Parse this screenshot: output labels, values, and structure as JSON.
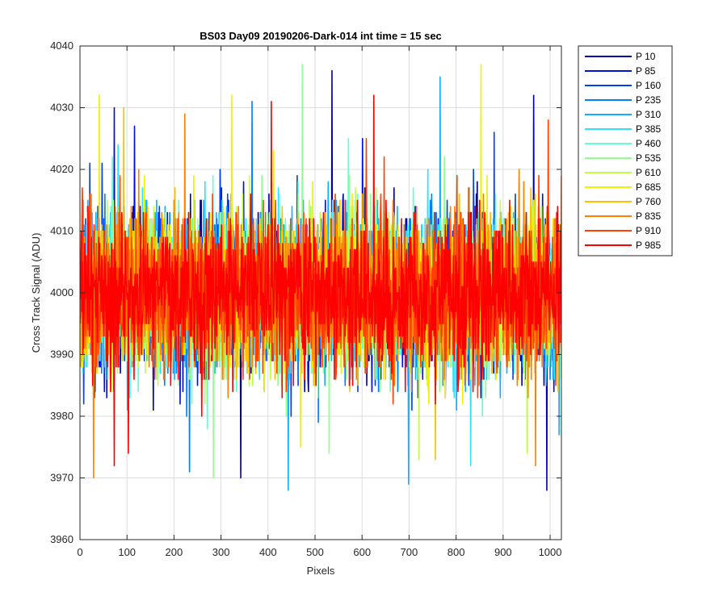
{
  "chart_data": {
    "type": "line",
    "title": "BS03 Day09 20190206-Dark-014 int time = 15 sec",
    "xlabel": "Pixels",
    "ylabel": "Cross Track Signal (ADU)",
    "xlim": [
      0,
      1024
    ],
    "ylim": [
      3960,
      4040
    ],
    "xticks": [
      0,
      100,
      200,
      300,
      400,
      500,
      600,
      700,
      800,
      900,
      1000
    ],
    "yticks": [
      3960,
      3970,
      3980,
      3990,
      4000,
      4010,
      4020,
      4030,
      4040
    ],
    "grid": true,
    "legend_position": "outside-right",
    "series": [
      {
        "name": "P 10",
        "color": "#0000aa",
        "mean": 4000,
        "spread": 6,
        "extremes": [
          [
            535,
            4036
          ],
          [
            964,
            4032
          ],
          [
            341,
            3970
          ],
          [
            992,
            3968
          ]
        ]
      },
      {
        "name": "P 85",
        "color": "#0010d8",
        "mean": 4000,
        "spread": 6,
        "extremes": [
          [
            72,
            4030
          ],
          [
            115,
            4027
          ],
          [
            600,
            4025
          ]
        ]
      },
      {
        "name": "P 160",
        "color": "#0040f0",
        "mean": 4000,
        "spread": 6,
        "extremes": [
          [
            20,
            4021
          ],
          [
            880,
            4026
          ]
        ]
      },
      {
        "name": "P 235",
        "color": "#0080f8",
        "mean": 4000,
        "spread": 6,
        "extremes": [
          [
            365,
            4031
          ],
          [
            232,
            3971
          ]
        ]
      },
      {
        "name": "P 310",
        "color": "#10b0ff",
        "mean": 4000,
        "spread": 6,
        "extremes": [
          [
            765,
            4035
          ],
          [
            442,
            3968
          ],
          [
            698,
            3969
          ]
        ]
      },
      {
        "name": "P 385",
        "color": "#30e0ff",
        "mean": 4000,
        "spread": 6,
        "extremes": [
          [
            80,
            4024
          ],
          [
            830,
            3972
          ]
        ]
      },
      {
        "name": "P 460",
        "color": "#60ffd0",
        "mean": 4000,
        "spread": 6,
        "extremes": [
          [
            570,
            4025
          ]
        ]
      },
      {
        "name": "P 535",
        "color": "#90ff90",
        "mean": 4000,
        "spread": 6,
        "extremes": [
          [
            472,
            4037
          ],
          [
            283,
            3970
          ]
        ]
      },
      {
        "name": "P 610",
        "color": "#c0ff40",
        "mean": 4000,
        "spread": 6,
        "extremes": [
          [
            720,
            3973
          ],
          [
            950,
            3974
          ]
        ]
      },
      {
        "name": "P 685",
        "color": "#f0f000",
        "mean": 4000,
        "spread": 6,
        "extremes": [
          [
            40,
            4032
          ],
          [
            322,
            4032
          ],
          [
            852,
            4037
          ],
          [
            468,
            3975
          ]
        ]
      },
      {
        "name": "P 760",
        "color": "#ffc000",
        "mean": 4000,
        "spread": 6,
        "extremes": [
          [
            92,
            4030
          ],
          [
            755,
            3973
          ]
        ]
      },
      {
        "name": "P 835",
        "color": "#ff8000",
        "mean": 4000,
        "spread": 6,
        "extremes": [
          [
            222,
            4029
          ],
          [
            28,
            3970
          ],
          [
            968,
            3972
          ]
        ]
      },
      {
        "name": "P 910",
        "color": "#ff4000",
        "mean": 4000,
        "spread": 6,
        "extremes": [
          [
            995,
            4028
          ],
          [
            608,
            4025
          ]
        ]
      },
      {
        "name": "P 985",
        "color": "#ff0000",
        "mean": 4000,
        "spread": 6,
        "extremes": [
          [
            406,
            4031
          ],
          [
            624,
            4032
          ],
          [
            72,
            3972
          ],
          [
            102,
            3974
          ]
        ]
      }
    ]
  }
}
